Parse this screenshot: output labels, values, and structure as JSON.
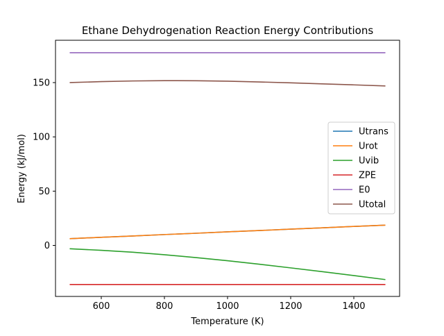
{
  "chart_data": {
    "type": "line",
    "title": "Ethane Dehydrogenation Reaction Energy Contributions",
    "xlabel": "Temperature (K)",
    "ylabel": "Energy (kJ/mol)",
    "xlim": [
      455,
      1545
    ],
    "ylim": [
      -47,
      189
    ],
    "xticks": [
      600,
      800,
      1000,
      1200,
      1400
    ],
    "yticks": [
      0,
      50,
      100,
      150
    ],
    "grid": false,
    "legend": "center-right",
    "x": [
      500,
      600,
      700,
      800,
      900,
      1000,
      1100,
      1200,
      1300,
      1400,
      1500
    ],
    "series": [
      {
        "name": "Utrans",
        "color": "#1f77b4",
        "values": [
          6.2,
          7.5,
          8.7,
          10.0,
          11.2,
          12.5,
          13.7,
          15.0,
          16.2,
          17.5,
          18.7
        ]
      },
      {
        "name": "Urot",
        "color": "#ff7f0e",
        "values": [
          6.2,
          7.5,
          8.7,
          10.0,
          11.2,
          12.5,
          13.7,
          15.0,
          16.2,
          17.5,
          18.7
        ]
      },
      {
        "name": "Uvib",
        "color": "#2ca02c",
        "values": [
          -3.1,
          -4.5,
          -6.3,
          -8.6,
          -11.2,
          -14.1,
          -17.3,
          -20.7,
          -24.2,
          -27.8,
          -31.5
        ]
      },
      {
        "name": "ZPE",
        "color": "#d62728",
        "values": [
          -36,
          -36,
          -36,
          -36,
          -36,
          -36,
          -36,
          -36,
          -36,
          -36,
          -36
        ]
      },
      {
        "name": "E0",
        "color": "#9467bd",
        "values": [
          177.5,
          177.5,
          177.5,
          177.5,
          177.5,
          177.5,
          177.5,
          177.5,
          177.5,
          177.5,
          177.5
        ]
      },
      {
        "name": "Utotal",
        "color": "#8c564b",
        "values": [
          150.0,
          150.9,
          151.5,
          151.8,
          151.7,
          151.3,
          150.6,
          149.8,
          148.8,
          147.9,
          146.9
        ]
      }
    ]
  }
}
